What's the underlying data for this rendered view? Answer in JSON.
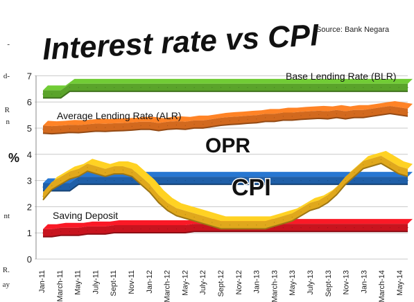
{
  "edge_fragments": [
    "-",
    "d-",
    "R",
    "n",
    "nt",
    "R.",
    "ay"
  ],
  "colors": {
    "blr": "#5aa32a",
    "alr": "#d2691e",
    "opr": "#1f5fa8",
    "cpi": "#e0a81c",
    "saving": "#c8141e",
    "title": "#111111",
    "axis_text": "#222222",
    "grid": "#c8c8c8"
  },
  "chart_data": {
    "type": "line",
    "title": "Interest rate vs CPI",
    "subtitle": "Source: Bank Negara",
    "xlabel": "",
    "ylabel": "%",
    "ylim": [
      0,
      7
    ],
    "yticks": [
      0,
      1,
      2,
      3,
      4,
      5,
      6,
      7
    ],
    "grid": true,
    "legend": "inline labels",
    "x": [
      "Jan-11",
      "Feb-11",
      "March-11",
      "Apr-11",
      "May-11",
      "Jun-11",
      "July-11",
      "Aug-11",
      "Sept-11",
      "Oct-11",
      "Nov-11",
      "Dec-11",
      "Jan-12",
      "Feb-12",
      "March-12",
      "Apr-12",
      "May-12",
      "Jun-12",
      "July-12",
      "Aug-12",
      "Sept-12",
      "Oct-12",
      "Nov-12",
      "Dec-12",
      "Jan-13",
      "Feb-13",
      "March-13",
      "Apr-13",
      "May-13",
      "Jun-13",
      "July-13",
      "Aug-13",
      "Sept-13",
      "Oct-13",
      "Nov-13",
      "Dec-13",
      "Jan-13",
      "Feb-14",
      "March-14",
      "Apr-14",
      "May-14",
      "Jun-14"
    ],
    "xtick_labels": [
      "Jan-11",
      "March-11",
      "May-11",
      "July-11",
      "Sept-11",
      "Nov-11",
      "Jan-12",
      "March-12",
      "May-12",
      "July-12",
      "Sept-12",
      "Nov-12",
      "Jan-13",
      "March-13",
      "May-13",
      "July-13",
      "Sept-13",
      "Nov-13",
      "Jan-13",
      "March-14",
      "May-14"
    ],
    "series": [
      {
        "name": "Base Lending Rate (BLR)",
        "key": "blr",
        "values": [
          6.3,
          6.3,
          6.3,
          6.55,
          6.55,
          6.55,
          6.55,
          6.55,
          6.55,
          6.55,
          6.55,
          6.55,
          6.55,
          6.55,
          6.55,
          6.55,
          6.55,
          6.55,
          6.55,
          6.55,
          6.55,
          6.55,
          6.55,
          6.55,
          6.55,
          6.55,
          6.55,
          6.55,
          6.55,
          6.55,
          6.55,
          6.55,
          6.55,
          6.55,
          6.55,
          6.55,
          6.55,
          6.55,
          6.55,
          6.55,
          6.55,
          6.55
        ]
      },
      {
        "name": "Average Lending Rate (ALR)",
        "key": "alr",
        "values": [
          4.95,
          4.93,
          4.95,
          4.98,
          4.97,
          5.0,
          5.03,
          5.02,
          5.04,
          5.05,
          5.07,
          5.1,
          5.1,
          5.05,
          5.1,
          5.12,
          5.1,
          5.15,
          5.15,
          5.2,
          5.25,
          5.28,
          5.3,
          5.33,
          5.35,
          5.4,
          5.4,
          5.45,
          5.45,
          5.48,
          5.5,
          5.52,
          5.5,
          5.55,
          5.5,
          5.55,
          5.55,
          5.6,
          5.65,
          5.7,
          5.65,
          5.6
        ]
      },
      {
        "name": "OPR",
        "key": "opr",
        "values": [
          2.75,
          2.75,
          2.75,
          2.75,
          3.0,
          3.0,
          3.0,
          3.0,
          3.0,
          3.0,
          3.0,
          3.0,
          3.0,
          3.0,
          3.0,
          3.0,
          3.0,
          3.0,
          3.0,
          3.0,
          3.0,
          3.0,
          3.0,
          3.0,
          3.0,
          3.0,
          3.0,
          3.0,
          3.0,
          3.0,
          3.0,
          3.0,
          3.0,
          3.0,
          3.0,
          3.0,
          3.0,
          3.0,
          3.0,
          3.0,
          3.0,
          3.0
        ]
      },
      {
        "name": "CPI",
        "key": "cpi",
        "values": [
          2.4,
          2.8,
          3.0,
          3.2,
          3.3,
          3.5,
          3.4,
          3.3,
          3.4,
          3.4,
          3.3,
          3.0,
          2.7,
          2.3,
          2.0,
          1.8,
          1.7,
          1.6,
          1.5,
          1.4,
          1.3,
          1.3,
          1.3,
          1.3,
          1.3,
          1.3,
          1.4,
          1.5,
          1.6,
          1.8,
          2.0,
          2.1,
          2.3,
          2.6,
          3.0,
          3.3,
          3.6,
          3.7,
          3.8,
          3.6,
          3.4,
          3.3
        ]
      },
      {
        "name": "Saving Deposit",
        "key": "saving",
        "values": [
          1.0,
          1.0,
          1.05,
          1.05,
          1.05,
          1.1,
          1.1,
          1.1,
          1.15,
          1.15,
          1.15,
          1.15,
          1.15,
          1.15,
          1.15,
          1.15,
          1.15,
          1.2,
          1.2,
          1.2,
          1.2,
          1.2,
          1.2,
          1.2,
          1.2,
          1.2,
          1.2,
          1.2,
          1.2,
          1.2,
          1.2,
          1.2,
          1.2,
          1.2,
          1.2,
          1.2,
          1.2,
          1.2,
          1.2,
          1.2,
          1.2,
          1.2
        ]
      }
    ]
  }
}
